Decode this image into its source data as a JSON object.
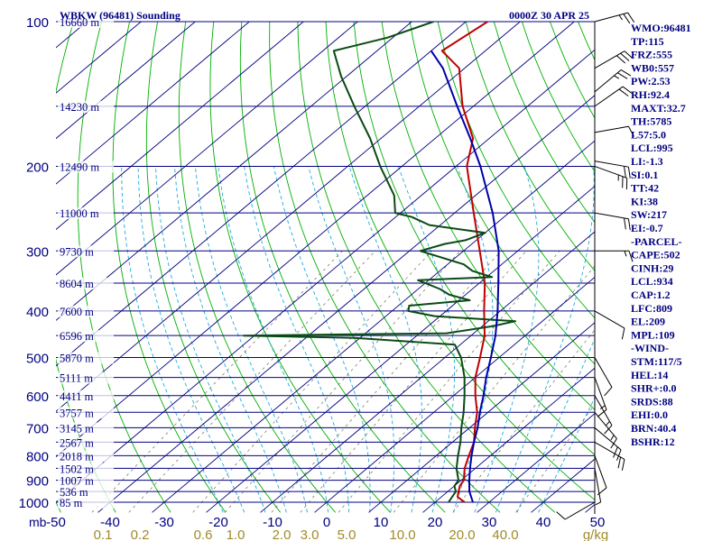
{
  "header": {
    "title": "WBKW (96481) Sounding",
    "time": "0000Z 30 APR 25"
  },
  "chart_data": {
    "type": "line",
    "title": "WBKW (96481) Sounding",
    "pressure_ticks": [
      {
        "p": 100,
        "label": "100"
      },
      {
        "p": 200,
        "label": "200"
      },
      {
        "p": 300,
        "label": "300"
      },
      {
        "p": 400,
        "label": "400"
      },
      {
        "p": 500,
        "label": "500"
      },
      {
        "p": 600,
        "label": "600"
      },
      {
        "p": 700,
        "label": "700"
      },
      {
        "p": 800,
        "label": "800"
      },
      {
        "p": 900,
        "label": "900"
      },
      {
        "p": 1000,
        "label": "1000"
      }
    ],
    "pressure_unit": "mb",
    "temperature_ticks": [
      -50,
      -40,
      -30,
      -20,
      -10,
      0,
      10,
      20,
      30,
      40,
      50
    ],
    "temp_range": [
      -50,
      50
    ],
    "pressure_range": [
      100,
      1050
    ],
    "mixing_ratio_labels": [
      "0.1",
      "0.2",
      "0.6",
      "1.0",
      "2.0",
      "3.0",
      "5.0",
      "10.0",
      "20.0",
      "40.0"
    ],
    "mixing_ratio_unit": "g/kg",
    "height_levels": [
      {
        "p": 100,
        "label": "16660 m"
      },
      {
        "p": 150,
        "label": "14230 m"
      },
      {
        "p": 200,
        "label": "12490 m"
      },
      {
        "p": 250,
        "label": "11000 m"
      },
      {
        "p": 300,
        "label": "9730 m"
      },
      {
        "p": 350,
        "label": "8604 m"
      },
      {
        "p": 400,
        "label": "7600 m"
      },
      {
        "p": 450,
        "label": "6596 m"
      },
      {
        "p": 500,
        "label": "5870 m"
      },
      {
        "p": 550,
        "label": "5111 m"
      },
      {
        "p": 600,
        "label": "4411 m"
      },
      {
        "p": 650,
        "label": "3757 m"
      },
      {
        "p": 700,
        "label": "3145 m"
      },
      {
        "p": 750,
        "label": "2567 m"
      },
      {
        "p": 800,
        "label": "2018 m"
      },
      {
        "p": 850,
        "label": "1502 m"
      },
      {
        "p": 900,
        "label": "1007 m"
      },
      {
        "p": 950,
        "label": "536 m"
      },
      {
        "p": 1000,
        "label": "85 m"
      }
    ],
    "series": [
      {
        "name": "Temperature",
        "color": "#c00000",
        "points": [
          [
            1000,
            25.5
          ],
          [
            975,
            23
          ],
          [
            950,
            22
          ],
          [
            925,
            21
          ],
          [
            900,
            20.5
          ],
          [
            850,
            18
          ],
          [
            800,
            16
          ],
          [
            750,
            14
          ],
          [
            700,
            11
          ],
          [
            650,
            8
          ],
          [
            600,
            4
          ],
          [
            550,
            0
          ],
          [
            500,
            -3.5
          ],
          [
            450,
            -7.5
          ],
          [
            400,
            -13
          ],
          [
            350,
            -19
          ],
          [
            300,
            -27
          ],
          [
            250,
            -36.5
          ],
          [
            200,
            -48
          ],
          [
            175,
            -53
          ],
          [
            150,
            -62
          ],
          [
            125,
            -71
          ],
          [
            115,
            -78
          ],
          [
            100,
            -76
          ]
        ]
      },
      {
        "name": "Dewpoint",
        "color": "#0a4a14",
        "points": [
          [
            1000,
            22.5
          ],
          [
            975,
            22
          ],
          [
            950,
            21.5
          ],
          [
            925,
            20
          ],
          [
            900,
            19.5
          ],
          [
            850,
            16.5
          ],
          [
            800,
            14
          ],
          [
            750,
            11.5
          ],
          [
            700,
            8.5
          ],
          [
            650,
            5.5
          ],
          [
            600,
            2
          ],
          [
            550,
            -2
          ],
          [
            500,
            -7
          ],
          [
            470,
            -11
          ],
          [
            455,
            -31
          ],
          [
            450,
            -52
          ],
          [
            445,
            -15
          ],
          [
            430,
            -8
          ],
          [
            420,
            -5
          ],
          [
            410,
            -21
          ],
          [
            400,
            -27
          ],
          [
            390,
            -28
          ],
          [
            380,
            -18
          ],
          [
            370,
            -23
          ],
          [
            360,
            -26
          ],
          [
            345,
            -32
          ],
          [
            340,
            -19
          ],
          [
            330,
            -24
          ],
          [
            320,
            -27
          ],
          [
            300,
            -38
          ],
          [
            290,
            -35
          ],
          [
            285,
            -32
          ],
          [
            275,
            -30
          ],
          [
            265,
            -42
          ],
          [
            255,
            -47
          ],
          [
            250,
            -51
          ],
          [
            230,
            -55
          ],
          [
            200,
            -64
          ],
          [
            175,
            -72
          ],
          [
            150,
            -82
          ],
          [
            130,
            -91
          ],
          [
            115,
            -98
          ],
          [
            108,
            -91
          ],
          [
            100,
            -86
          ]
        ]
      },
      {
        "name": "Parcel",
        "color": "#0000a8",
        "points": [
          [
            1000,
            27
          ],
          [
            950,
            24
          ],
          [
            900,
            21.5
          ],
          [
            850,
            19
          ],
          [
            800,
            16.5
          ],
          [
            750,
            14
          ],
          [
            700,
            11.5
          ],
          [
            650,
            8.5
          ],
          [
            600,
            5.5
          ],
          [
            550,
            2
          ],
          [
            500,
            -1.5
          ],
          [
            450,
            -5.5
          ],
          [
            400,
            -10.5
          ],
          [
            350,
            -16.5
          ],
          [
            300,
            -23.5
          ],
          [
            250,
            -33
          ],
          [
            200,
            -45.5
          ],
          [
            175,
            -53.5
          ],
          [
            150,
            -63
          ],
          [
            125,
            -74
          ],
          [
            115,
            -80
          ]
        ]
      }
    ],
    "wind_barbs": [
      {
        "p": 100,
        "dir": 75,
        "spd": 25
      },
      {
        "p": 125,
        "dir": 60,
        "spd": 30
      },
      {
        "p": 140,
        "dir": 50,
        "spd": 25
      },
      {
        "p": 150,
        "dir": 55,
        "spd": 20
      },
      {
        "p": 170,
        "dir": 80,
        "spd": 10
      },
      {
        "p": 195,
        "dir": 100,
        "spd": 20
      },
      {
        "p": 200,
        "dir": 110,
        "spd": 25
      },
      {
        "p": 250,
        "dir": 100,
        "spd": 20
      },
      {
        "p": 300,
        "dir": 90,
        "spd": 15
      },
      {
        "p": 400,
        "dir": 120,
        "spd": 10
      },
      {
        "p": 500,
        "dir": 150,
        "spd": 10
      },
      {
        "p": 550,
        "dir": 160,
        "spd": 15
      },
      {
        "p": 600,
        "dir": 150,
        "spd": 15
      },
      {
        "p": 650,
        "dir": 140,
        "spd": 15
      },
      {
        "p": 700,
        "dir": 130,
        "spd": 20
      },
      {
        "p": 750,
        "dir": 120,
        "spd": 20
      },
      {
        "p": 800,
        "dir": 160,
        "spd": 10
      },
      {
        "p": 850,
        "dir": 170,
        "spd": 5
      },
      {
        "p": 1000,
        "dir": 240,
        "spd": 10
      }
    ]
  },
  "indices": [
    "WMO:96481",
    "TP:115",
    "FRZ:555",
    "WB0:557",
    "PW:2.53",
    "RH:92.4",
    "MAXT:32.7",
    "TH:5785",
    "L57:5.0",
    "LCL:995",
    "LI:-1.3",
    "SI:0.1",
    "TT:42",
    "KI:38",
    "SW:217",
    "EI:-0.7",
    "-PARCEL-",
    "CAPE:502",
    "CINH:29",
    "LCL:934",
    "CAP:1.2",
    "LFC:809",
    "EL:209",
    "MPL:109",
    "-WIND-",
    "STM:117/5",
    "HEL:14",
    "SHR+:0.0",
    "SRDS:88",
    "EHI:0.0",
    "BRN:40.4",
    "BSHR:12"
  ],
  "colors": {
    "isobar": "#000080",
    "isotherm": "#000080",
    "dry_adiabat": "#00b000",
    "moist_adiabat": "#22aadd",
    "mixing_ratio": "#707050",
    "text": "#000080",
    "mixing_label": "#a08a2a",
    "temp_label": "#0a7a0a"
  }
}
